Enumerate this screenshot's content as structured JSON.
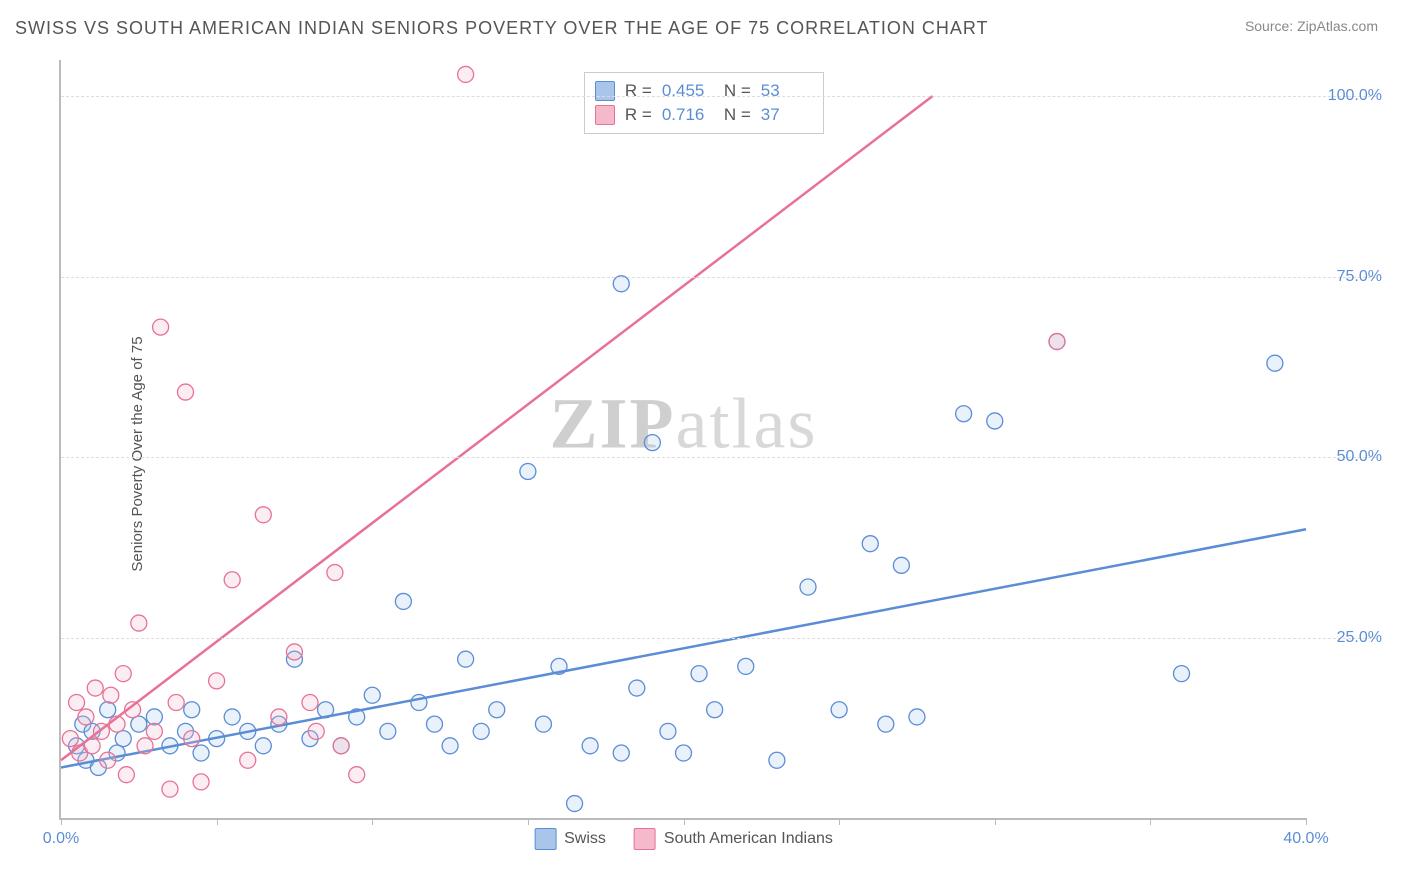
{
  "header": {
    "title": "SWISS VS SOUTH AMERICAN INDIAN SENIORS POVERTY OVER THE AGE OF 75 CORRELATION CHART",
    "source_label": "Source:",
    "source_name": "ZipAtlas.com"
  },
  "chart": {
    "type": "scatter",
    "y_label": "Seniors Poverty Over the Age of 75",
    "xlim": [
      0,
      40
    ],
    "ylim": [
      0,
      105
    ],
    "x_ticks": [
      0,
      5,
      10,
      15,
      20,
      25,
      30,
      35,
      40
    ],
    "x_tick_labels": {
      "0": "0.0%",
      "40": "40.0%"
    },
    "y_ticks": [
      25,
      50,
      75,
      100
    ],
    "y_tick_labels": {
      "25": "25.0%",
      "50": "50.0%",
      "75": "75.0%",
      "100": "100.0%"
    },
    "grid_color": "#dddddd",
    "axis_color": "#bbbbbb",
    "background_color": "#ffffff",
    "watermark": "ZIPatlas",
    "marker_radius": 8,
    "marker_fill_opacity": 0.25,
    "series": [
      {
        "name": "Swiss",
        "color_stroke": "#5b8dd6",
        "color_fill": "#a9c6ea",
        "R": "0.455",
        "N": "53",
        "trend": {
          "x1": 0,
          "y1": 7,
          "x2": 40,
          "y2": 40
        },
        "points": [
          [
            0.5,
            10
          ],
          [
            0.7,
            13
          ],
          [
            0.8,
            8
          ],
          [
            1,
            12
          ],
          [
            1.2,
            7
          ],
          [
            1.5,
            15
          ],
          [
            1.8,
            9
          ],
          [
            2,
            11
          ],
          [
            2.5,
            13
          ],
          [
            3,
            14
          ],
          [
            3.5,
            10
          ],
          [
            4,
            12
          ],
          [
            4.2,
            15
          ],
          [
            4.5,
            9
          ],
          [
            5,
            11
          ],
          [
            5.5,
            14
          ],
          [
            6,
            12
          ],
          [
            6.5,
            10
          ],
          [
            7,
            13
          ],
          [
            7.5,
            22
          ],
          [
            8,
            11
          ],
          [
            8.5,
            15
          ],
          [
            9,
            10
          ],
          [
            9.5,
            14
          ],
          [
            10,
            17
          ],
          [
            10.5,
            12
          ],
          [
            11,
            30
          ],
          [
            11.5,
            16
          ],
          [
            12,
            13
          ],
          [
            12.5,
            10
          ],
          [
            13,
            22
          ],
          [
            13.5,
            12
          ],
          [
            14,
            15
          ],
          [
            15,
            48
          ],
          [
            15.5,
            13
          ],
          [
            16,
            21
          ],
          [
            16.5,
            2
          ],
          [
            17,
            10
          ],
          [
            18,
            9
          ],
          [
            18.5,
            18
          ],
          [
            19,
            52
          ],
          [
            19.5,
            12
          ],
          [
            20,
            9
          ],
          [
            20.5,
            20
          ],
          [
            21,
            15
          ],
          [
            22,
            21
          ],
          [
            23,
            8
          ],
          [
            24,
            32
          ],
          [
            25,
            15
          ],
          [
            26,
            38
          ],
          [
            26.5,
            13
          ],
          [
            27,
            35
          ],
          [
            27.5,
            14
          ],
          [
            29,
            56
          ],
          [
            30,
            55
          ],
          [
            32,
            66
          ],
          [
            36,
            20
          ],
          [
            39,
            63
          ],
          [
            18,
            74
          ]
        ]
      },
      {
        "name": "South American Indians",
        "color_stroke": "#e77296",
        "color_fill": "#f4b9cb",
        "R": "0.716",
        "N": "37",
        "trend": {
          "x1": 0,
          "y1": 8,
          "x2": 28,
          "y2": 100
        },
        "points": [
          [
            0.3,
            11
          ],
          [
            0.5,
            16
          ],
          [
            0.6,
            9
          ],
          [
            0.8,
            14
          ],
          [
            1,
            10
          ],
          [
            1.1,
            18
          ],
          [
            1.3,
            12
          ],
          [
            1.5,
            8
          ],
          [
            1.6,
            17
          ],
          [
            1.8,
            13
          ],
          [
            2,
            20
          ],
          [
            2.1,
            6
          ],
          [
            2.3,
            15
          ],
          [
            2.5,
            27
          ],
          [
            2.7,
            10
          ],
          [
            3,
            12
          ],
          [
            3.2,
            68
          ],
          [
            3.5,
            4
          ],
          [
            3.7,
            16
          ],
          [
            4,
            59
          ],
          [
            4.2,
            11
          ],
          [
            4.5,
            5
          ],
          [
            5,
            19
          ],
          [
            5.5,
            33
          ],
          [
            6,
            8
          ],
          [
            6.5,
            42
          ],
          [
            7,
            14
          ],
          [
            7.5,
            23
          ],
          [
            8,
            16
          ],
          [
            8.2,
            12
          ],
          [
            8.8,
            34
          ],
          [
            9,
            10
          ],
          [
            9.5,
            6
          ],
          [
            13,
            103
          ],
          [
            32,
            66
          ]
        ]
      }
    ],
    "legend": {
      "stat_labels": {
        "R": "R =",
        "N": "N ="
      }
    }
  }
}
